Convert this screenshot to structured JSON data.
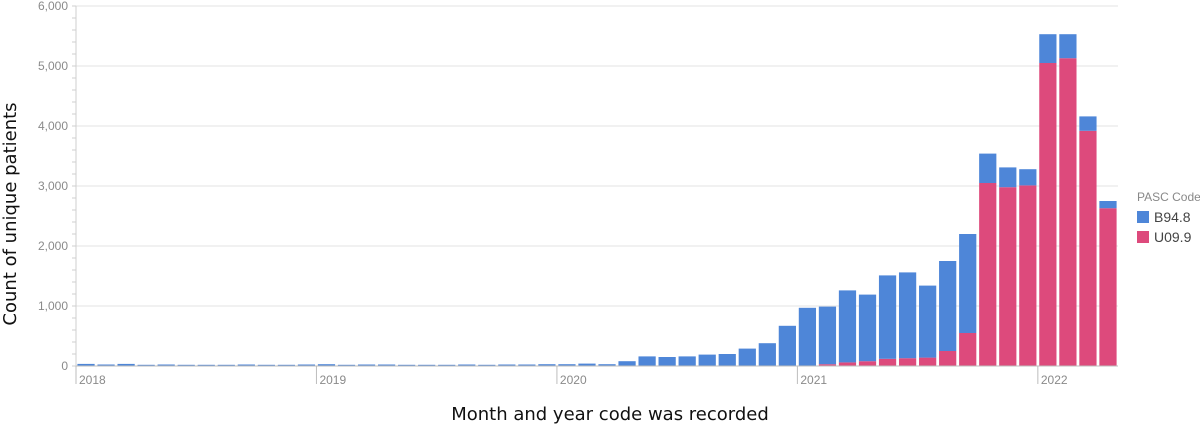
{
  "chart_data": {
    "type": "bar",
    "stacked": true,
    "xlabel": "Month and year code was recorded",
    "ylabel": "Count of unique patients",
    "ylim": [
      0,
      6000
    ],
    "yticks": [
      0,
      1000,
      2000,
      3000,
      4000,
      5000,
      6000
    ],
    "ytick_labels": [
      "0",
      "1,000",
      "2,000",
      "3,000",
      "4,000",
      "5,000",
      "6,000"
    ],
    "xtick_labels": [
      {
        "label": "2018",
        "month_index": 0
      },
      {
        "label": "2019",
        "month_index": 12
      },
      {
        "label": "2020",
        "month_index": 24
      },
      {
        "label": "2021",
        "month_index": 36
      },
      {
        "label": "2022",
        "month_index": 48
      }
    ],
    "grid": true,
    "legend": {
      "title": "PASC Code",
      "position": "right"
    },
    "categories": [
      "2018-01",
      "2018-02",
      "2018-03",
      "2018-04",
      "2018-05",
      "2018-06",
      "2018-07",
      "2018-08",
      "2018-09",
      "2018-10",
      "2018-11",
      "2018-12",
      "2019-01",
      "2019-02",
      "2019-03",
      "2019-04",
      "2019-05",
      "2019-06",
      "2019-07",
      "2019-08",
      "2019-09",
      "2019-10",
      "2019-11",
      "2019-12",
      "2020-01",
      "2020-02",
      "2020-03",
      "2020-04",
      "2020-05",
      "2020-06",
      "2020-07",
      "2020-08",
      "2020-09",
      "2020-10",
      "2020-11",
      "2020-12",
      "2021-01",
      "2021-02",
      "2021-03",
      "2021-04",
      "2021-05",
      "2021-06",
      "2021-07",
      "2021-08",
      "2021-09",
      "2021-10",
      "2021-11",
      "2021-12",
      "2022-01",
      "2022-02",
      "2022-03",
      "2022-04"
    ],
    "series": [
      {
        "name": "U09.9",
        "color": "#dd4a7c",
        "values": [
          0,
          0,
          0,
          0,
          0,
          0,
          0,
          0,
          0,
          0,
          0,
          0,
          0,
          0,
          0,
          0,
          0,
          0,
          0,
          0,
          0,
          0,
          0,
          0,
          0,
          0,
          0,
          0,
          0,
          0,
          0,
          0,
          0,
          0,
          0,
          0,
          0,
          30,
          60,
          80,
          120,
          130,
          140,
          250,
          550,
          3050,
          2980,
          3010,
          5050,
          5130,
          3920,
          2630
        ]
      },
      {
        "name": "B94.8",
        "color": "#4e86d8",
        "values": [
          35,
          25,
          35,
          20,
          25,
          20,
          20,
          20,
          25,
          20,
          20,
          25,
          30,
          20,
          25,
          25,
          20,
          20,
          20,
          25,
          20,
          25,
          25,
          30,
          30,
          40,
          30,
          80,
          160,
          150,
          160,
          190,
          200,
          290,
          380,
          670,
          970,
          960,
          1200,
          1110,
          1390,
          1430,
          1200,
          1500,
          1650,
          490,
          330,
          270,
          480,
          400,
          240,
          120
        ]
      }
    ]
  }
}
